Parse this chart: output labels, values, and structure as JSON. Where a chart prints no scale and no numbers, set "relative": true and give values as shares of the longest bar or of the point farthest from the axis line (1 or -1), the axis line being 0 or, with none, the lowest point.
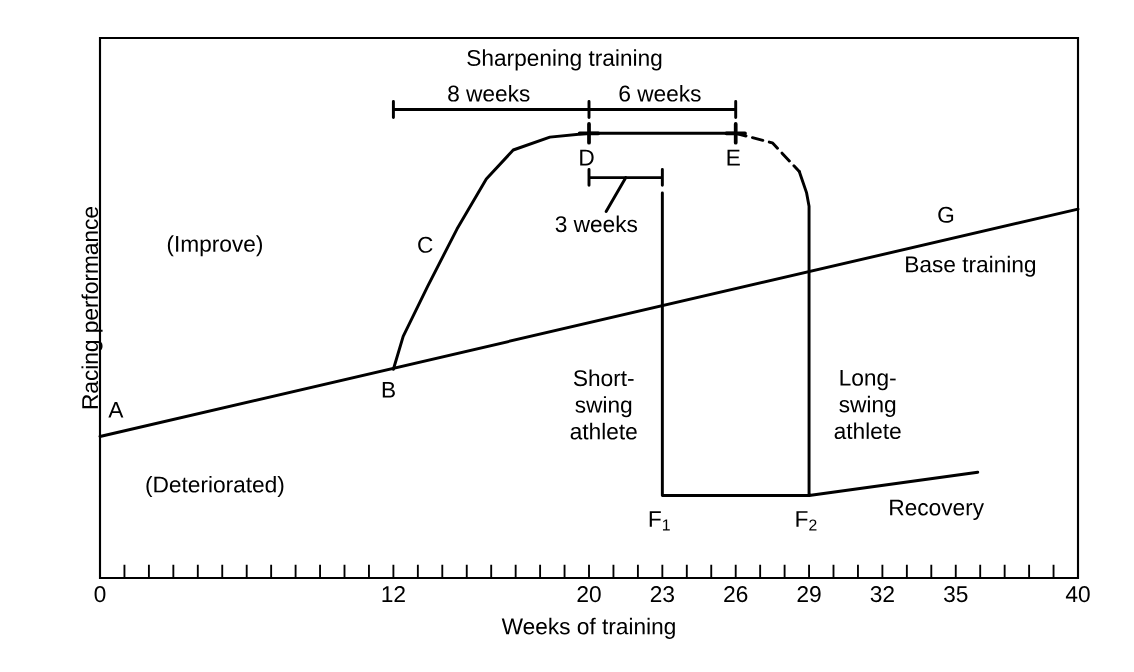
{
  "chart_data": {
    "type": "line",
    "relative": true,
    "xlabel": "Weeks of training",
    "ylabel": "Racing performance",
    "xlim": [
      0,
      40
    ],
    "xticks": [
      0,
      {
        "value": 1,
        "label": null
      },
      {
        "value": 2,
        "label": null
      },
      {
        "value": 3,
        "label": null
      },
      {
        "value": 4,
        "label": null
      },
      {
        "value": 5,
        "label": null
      },
      {
        "value": 6,
        "label": null
      },
      {
        "value": 7,
        "label": null
      },
      {
        "value": 8,
        "label": null
      },
      {
        "value": 9,
        "label": null
      },
      {
        "value": 10,
        "label": null
      },
      {
        "value": 11,
        "label": null
      },
      12,
      {
        "value": 13,
        "label": null
      },
      {
        "value": 14,
        "label": null
      },
      {
        "value": 15,
        "label": null
      },
      {
        "value": 16,
        "label": null
      },
      {
        "value": 17,
        "label": null
      },
      {
        "value": 18,
        "label": null
      },
      {
        "value": 19,
        "label": null
      },
      20,
      {
        "value": 21,
        "label": null
      },
      {
        "value": 22,
        "label": null
      },
      23,
      {
        "value": 24,
        "label": null
      },
      {
        "value": 25,
        "label": null
      },
      26,
      {
        "value": 27,
        "label": null
      },
      {
        "value": 28,
        "label": null
      },
      29,
      {
        "value": 30,
        "label": null
      },
      {
        "value": 31,
        "label": null
      },
      32,
      {
        "value": 33,
        "label": null
      },
      {
        "value": 34,
        "label": null
      },
      35,
      {
        "value": 36,
        "label": null
      },
      {
        "value": 37,
        "label": null
      },
      {
        "value": 38,
        "label": null
      },
      {
        "value": 39,
        "label": null
      },
      40
    ],
    "series": [
      {
        "color": "#000000",
        "x": [
          0,
          40
        ],
        "values": [
          0.297,
          0.774
        ]
      },
      {
        "color": "#000000",
        "x": [
          12,
          12.4,
          13.4,
          14.6,
          15.8,
          16.9,
          18.4,
          20,
          26
        ],
        "values": [
          0.438,
          0.507,
          0.612,
          0.732,
          0.837,
          0.898,
          0.925,
          0.933,
          0.933
        ]
      },
      {
        "color": "#000000",
        "line_style": "dashed",
        "x": [
          26,
          27.5,
          28.6
        ],
        "values": [
          0.933,
          0.913,
          0.853
        ]
      },
      {
        "name": "Long-swing athlete",
        "color": "#000000",
        "x": [
          28.6,
          28.9,
          29,
          29,
          35.9
        ],
        "values": [
          0.853,
          0.808,
          0.78,
          0.173,
          0.222
        ]
      },
      {
        "name": "Short-swing athlete",
        "color": "#000000",
        "x": [
          23,
          23,
          29
        ],
        "values": [
          0.808,
          0.173,
          0.173
        ]
      },
      {
        "type": "scatter",
        "marker": "cross",
        "color": "#000000",
        "x": [
          20,
          26
        ],
        "values": [
          0.933,
          0.933
        ]
      },
      {
        "color": "#000000",
        "x": [
          12,
          12,
          12,
          20,
          20,
          20,
          20,
          26,
          26,
          26
        ],
        "values": [
          1.0,
          0.966,
          0.983,
          0.983,
          1.0,
          0.966,
          0.983,
          0.983,
          1.0,
          0.966
        ]
      },
      {
        "color": "#000000",
        "x": [
          20,
          20,
          20,
          23,
          23,
          23
        ],
        "values": [
          0.857,
          0.824,
          0.84,
          0.84,
          0.857,
          0.824
        ]
      },
      {
        "color": "#000000",
        "x": [
          21.5,
          20.7
        ],
        "values": [
          0.84,
          0.769
        ]
      }
    ],
    "annotations": [
      "Sharpening training",
      "8 weeks",
      "6 weeks",
      "3 weeks",
      "D",
      "E",
      "C",
      "G",
      "Base training",
      "(Improve)",
      "A",
      "B",
      "(Deteriorated)",
      "F$_{1}$",
      "F$_{2}$",
      "Recovery"
    ]
  }
}
